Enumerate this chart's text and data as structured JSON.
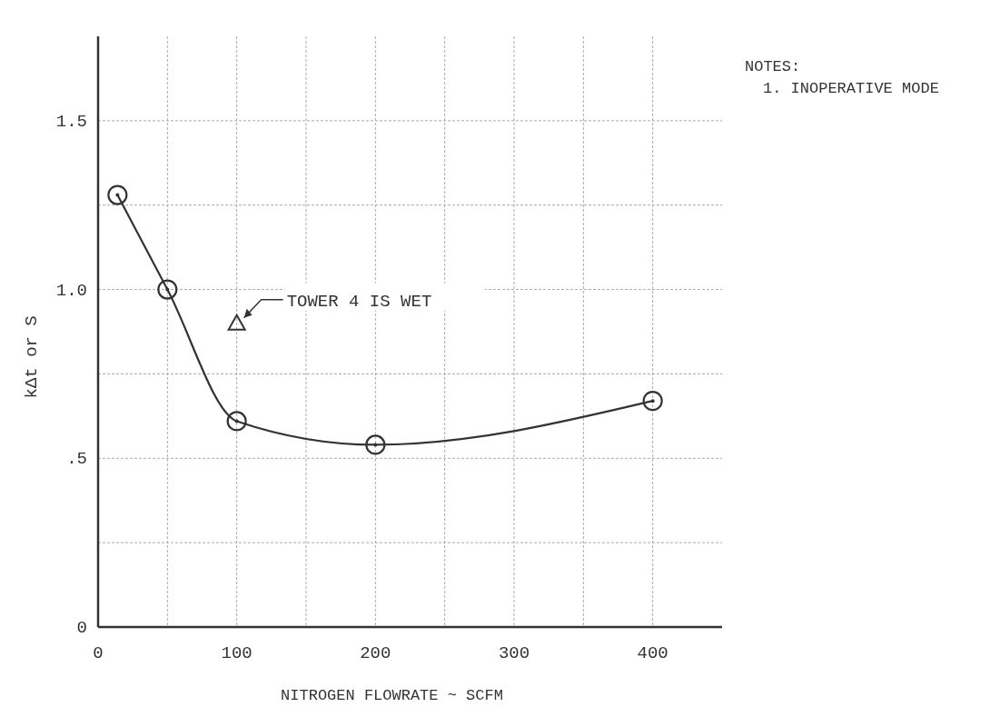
{
  "chart_data": {
    "type": "line",
    "xlabel": "NITROGEN FLOWRATE ~ SCFM",
    "ylabel": "kΔt or S",
    "xlim": [
      0,
      450
    ],
    "xticks": [
      0,
      {
        "value": 50,
        "label": null
      },
      100,
      {
        "value": 150,
        "label": null
      },
      200,
      {
        "value": 250,
        "label": null
      },
      300,
      {
        "value": 350,
        "label": null
      },
      400
    ],
    "ylim": [
      0,
      1.75
    ],
    "yticks": [
      {
        "value": 0,
        "label": "0"
      },
      {
        "value": 0.25,
        "label": null
      },
      {
        "value": 0.5,
        "label": ".5"
      },
      {
        "value": 0.75,
        "label": null
      },
      {
        "value": 1,
        "label": "1.0"
      },
      {
        "value": 1.25,
        "label": null
      },
      {
        "value": 1.5,
        "label": "1.5"
      }
    ],
    "grid": true,
    "series": [
      {
        "color": "#333333",
        "marker": "circle",
        "x": [
          14,
          50,
          100,
          200,
          400
        ],
        "values": [
          1.28,
          1.0,
          0.61,
          0.54,
          0.67
        ]
      },
      {
        "type": "scatter",
        "color": "#333333",
        "marker": "triangle",
        "x": [
          100
        ],
        "values": [
          0.9
        ]
      }
    ],
    "annotations": [
      "TOWER 4 IS WET",
      "NOTES:",
      "1. INOPERATIVE MODE"
    ]
  }
}
